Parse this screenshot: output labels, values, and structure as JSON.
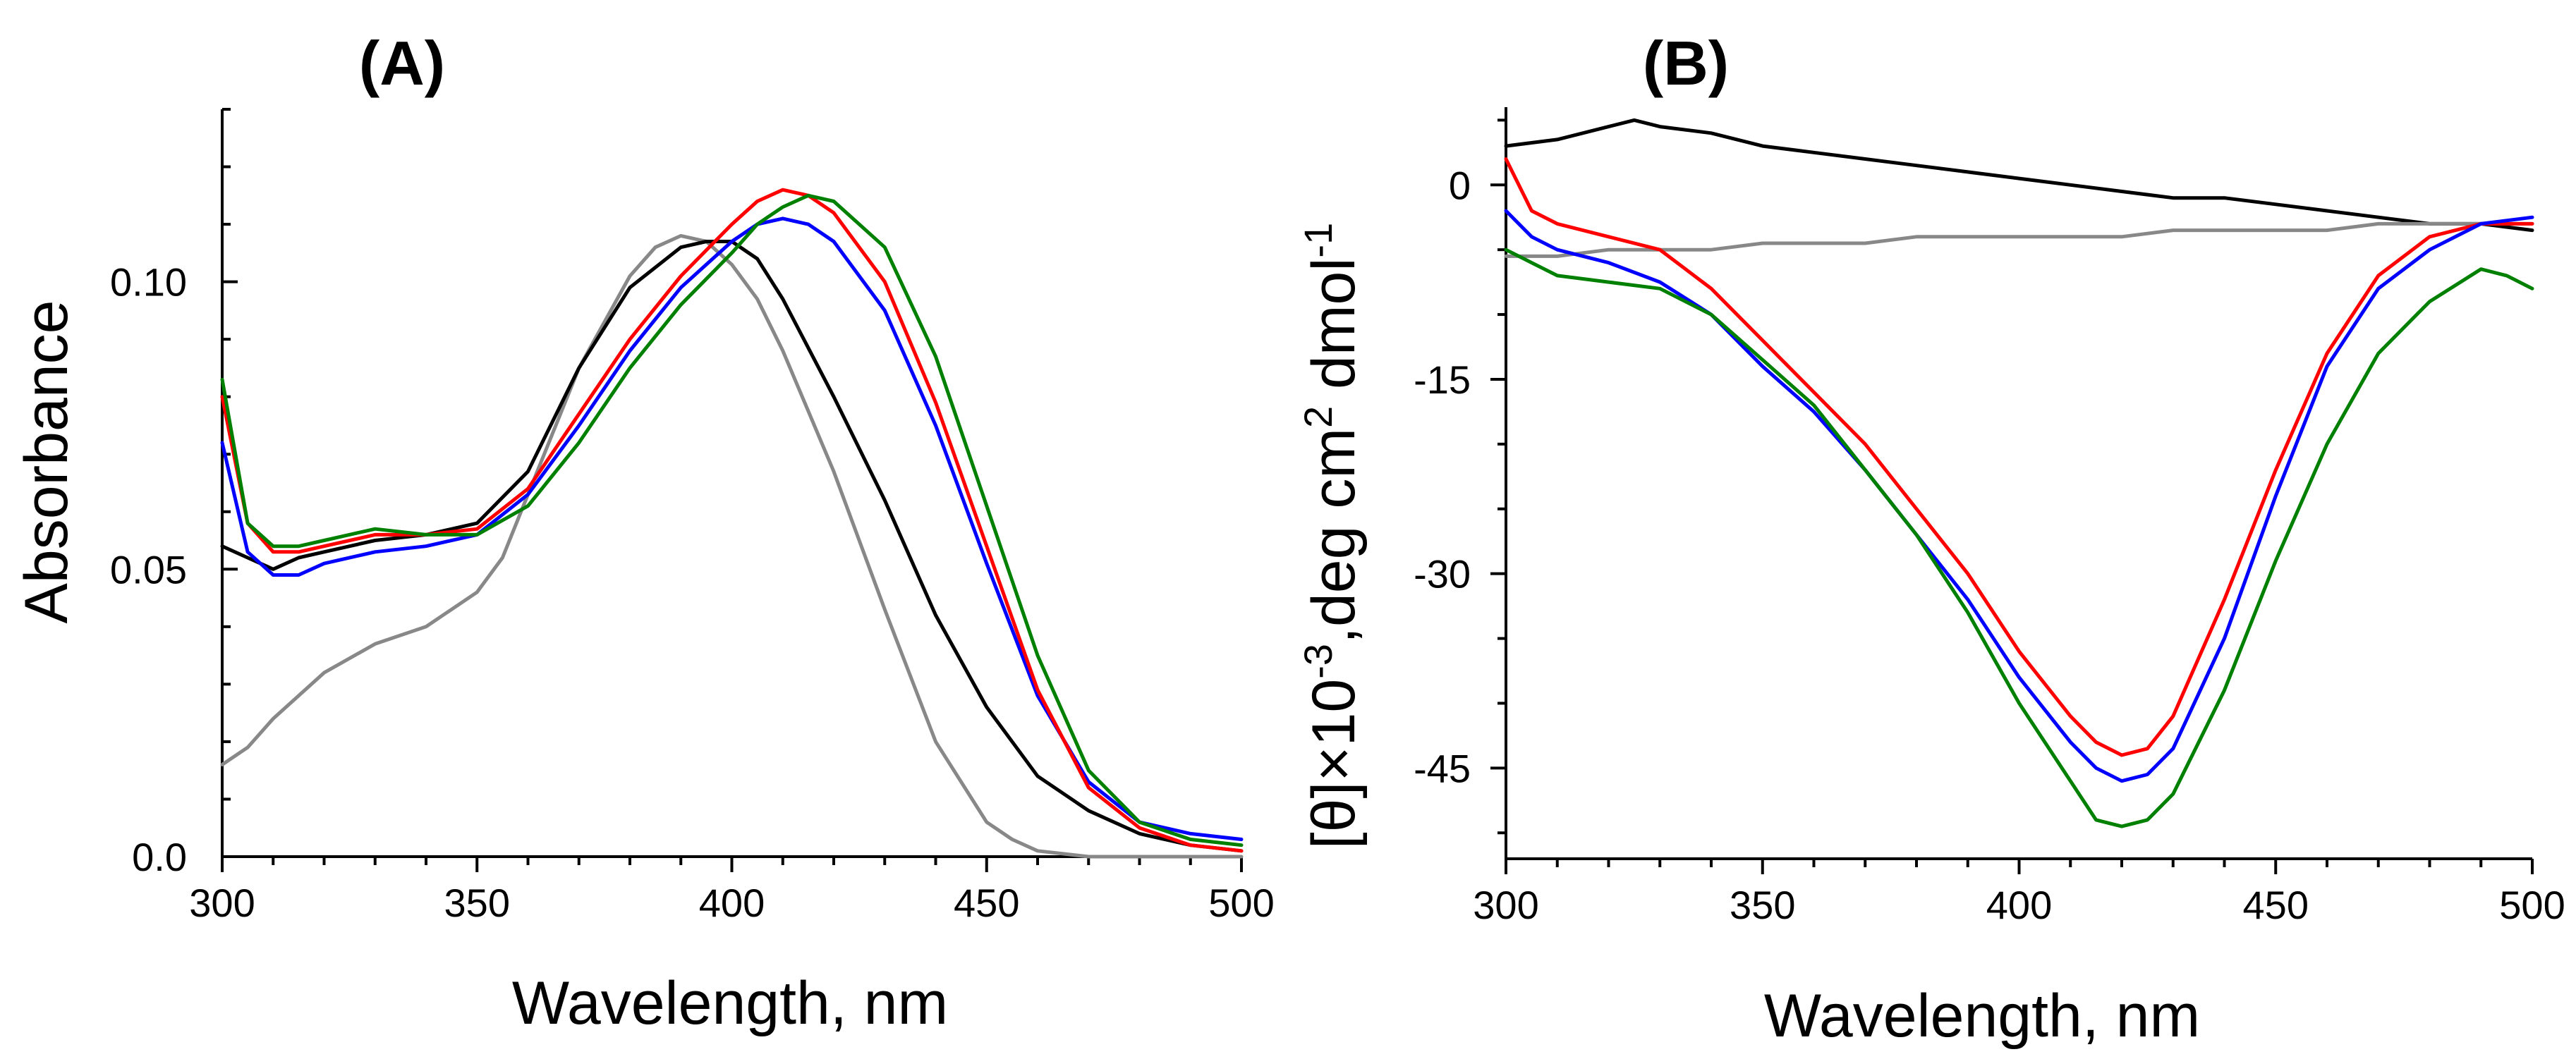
{
  "chart_data": [
    {
      "type": "line",
      "panel_label": "(A)",
      "xlabel": "Wavelength, nm",
      "ylabel": "Absorbance",
      "xlim": [
        300,
        500
      ],
      "ylim": [
        0,
        0.13
      ],
      "xticks": [
        "300",
        "350",
        "400",
        "450",
        "500"
      ],
      "yticks": [
        "0.0",
        "0.05",
        "0.10"
      ],
      "ytick_values": [
        0,
        0.05,
        0.1
      ],
      "series": [
        {
          "name": "gray",
          "color": "#888888",
          "x": [
            300,
            305,
            310,
            320,
            330,
            340,
            350,
            355,
            360,
            370,
            380,
            385,
            390,
            395,
            400,
            405,
            410,
            420,
            430,
            440,
            450,
            455,
            460,
            465,
            470,
            475,
            480,
            490,
            500
          ],
          "y": [
            0.016,
            0.019,
            0.024,
            0.032,
            0.037,
            0.04,
            0.046,
            0.052,
            0.063,
            0.085,
            0.101,
            0.106,
            0.108,
            0.107,
            0.103,
            0.097,
            0.088,
            0.067,
            0.043,
            0.02,
            0.006,
            0.003,
            0.001,
            0.0005,
            0.0,
            0.0,
            0.0,
            0.0,
            0.0
          ]
        },
        {
          "name": "black",
          "color": "#000000",
          "x": [
            300,
            305,
            310,
            315,
            320,
            330,
            340,
            350,
            360,
            370,
            380,
            390,
            395,
            400,
            405,
            410,
            420,
            430,
            440,
            450,
            460,
            470,
            480,
            490,
            500
          ],
          "y": [
            0.054,
            0.052,
            0.05,
            0.052,
            0.053,
            0.055,
            0.056,
            0.058,
            0.067,
            0.085,
            0.099,
            0.106,
            0.107,
            0.107,
            0.104,
            0.097,
            0.08,
            0.062,
            0.042,
            0.026,
            0.014,
            0.008,
            0.004,
            0.002,
            0.001
          ]
        },
        {
          "name": "blue",
          "color": "#0000ff",
          "x": [
            300,
            305,
            310,
            315,
            320,
            330,
            340,
            350,
            360,
            370,
            380,
            390,
            400,
            405,
            410,
            415,
            420,
            430,
            440,
            450,
            460,
            470,
            480,
            490,
            500
          ],
          "y": [
            0.072,
            0.053,
            0.049,
            0.049,
            0.051,
            0.053,
            0.054,
            0.056,
            0.063,
            0.075,
            0.088,
            0.099,
            0.107,
            0.11,
            0.111,
            0.11,
            0.107,
            0.095,
            0.075,
            0.051,
            0.028,
            0.013,
            0.006,
            0.004,
            0.003
          ]
        },
        {
          "name": "red",
          "color": "#ff0000",
          "x": [
            300,
            305,
            310,
            315,
            320,
            330,
            340,
            350,
            360,
            370,
            380,
            390,
            400,
            405,
            410,
            415,
            420,
            430,
            440,
            450,
            460,
            470,
            480,
            490,
            500
          ],
          "y": [
            0.08,
            0.058,
            0.053,
            0.053,
            0.054,
            0.056,
            0.056,
            0.057,
            0.064,
            0.077,
            0.09,
            0.101,
            0.11,
            0.114,
            0.116,
            0.115,
            0.112,
            0.1,
            0.079,
            0.054,
            0.029,
            0.012,
            0.005,
            0.002,
            0.001
          ]
        },
        {
          "name": "green",
          "color": "#008000",
          "x": [
            300,
            305,
            310,
            315,
            320,
            330,
            340,
            350,
            360,
            370,
            380,
            390,
            400,
            405,
            410,
            415,
            420,
            430,
            440,
            450,
            460,
            470,
            480,
            490,
            500
          ],
          "y": [
            0.083,
            0.058,
            0.054,
            0.054,
            0.055,
            0.057,
            0.056,
            0.056,
            0.061,
            0.072,
            0.085,
            0.096,
            0.105,
            0.11,
            0.113,
            0.115,
            0.114,
            0.106,
            0.087,
            0.061,
            0.035,
            0.015,
            0.006,
            0.003,
            0.002
          ]
        }
      ]
    },
    {
      "type": "line",
      "panel_label": "(B)",
      "xlabel": "Wavelength, nm",
      "ylabel_base": "[θ]×10",
      "ylabel_exp1": "-3",
      "ylabel_mid": ",deg cm",
      "ylabel_exp2": "2",
      "ylabel_unit": " dmol",
      "ylabel_exp3": "-1",
      "xlim": [
        300,
        500
      ],
      "ylim": [
        -52,
        6
      ],
      "xticks": [
        "300",
        "350",
        "400",
        "450",
        "500"
      ],
      "yticks": [
        "0",
        "-15",
        "-30",
        "-45"
      ],
      "ytick_values": [
        0,
        -15,
        -30,
        -45
      ],
      "minor_ytick_values": [
        5,
        -5,
        -10,
        -20,
        -25,
        -35,
        -40,
        -50
      ],
      "series": [
        {
          "name": "black",
          "color": "#000000",
          "x": [
            300,
            310,
            320,
            325,
            330,
            340,
            350,
            360,
            370,
            380,
            390,
            400,
            410,
            420,
            430,
            440,
            450,
            460,
            470,
            480,
            490,
            500
          ],
          "y": [
            3,
            3.5,
            4.5,
            5,
            4.5,
            4,
            3,
            2.5,
            2,
            1.5,
            1,
            0.5,
            0,
            -0.5,
            -1,
            -1,
            -1.5,
            -2,
            -2.5,
            -3,
            -3,
            -3.5
          ]
        },
        {
          "name": "gray",
          "color": "#888888",
          "x": [
            300,
            310,
            320,
            330,
            340,
            350,
            360,
            370,
            380,
            390,
            400,
            410,
            420,
            430,
            440,
            450,
            460,
            470,
            480,
            490,
            500
          ],
          "y": [
            -5.5,
            -5.5,
            -5,
            -5,
            -5,
            -4.5,
            -4.5,
            -4.5,
            -4,
            -4,
            -4,
            -4,
            -4,
            -3.5,
            -3.5,
            -3.5,
            -3.5,
            -3,
            -3,
            -3,
            -3
          ]
        },
        {
          "name": "red",
          "color": "#ff0000",
          "x": [
            300,
            305,
            310,
            320,
            330,
            340,
            350,
            360,
            370,
            380,
            390,
            400,
            410,
            415,
            420,
            425,
            430,
            440,
            450,
            460,
            470,
            480,
            490,
            500
          ],
          "y": [
            2,
            -2,
            -3,
            -4,
            -5,
            -8,
            -12,
            -16,
            -20,
            -25,
            -30,
            -36,
            -41,
            -43,
            -44,
            -43.5,
            -41,
            -32,
            -22,
            -13,
            -7,
            -4,
            -3,
            -3
          ]
        },
        {
          "name": "blue",
          "color": "#0000ff",
          "x": [
            300,
            305,
            310,
            320,
            330,
            340,
            350,
            360,
            370,
            380,
            390,
            400,
            410,
            415,
            420,
            425,
            430,
            440,
            450,
            460,
            470,
            480,
            490,
            500
          ],
          "y": [
            -2,
            -4,
            -5,
            -6,
            -7.5,
            -10,
            -14,
            -17.5,
            -22,
            -27,
            -32,
            -38,
            -43,
            -45,
            -46,
            -45.5,
            -43.5,
            -35,
            -24,
            -14,
            -8,
            -5,
            -3,
            -2.5
          ]
        },
        {
          "name": "green",
          "color": "#008000",
          "x": [
            300,
            305,
            310,
            320,
            330,
            340,
            350,
            360,
            370,
            380,
            390,
            400,
            410,
            415,
            420,
            425,
            430,
            440,
            450,
            460,
            470,
            480,
            490,
            495,
            500
          ],
          "y": [
            -5,
            -6,
            -7,
            -7.5,
            -8,
            -10,
            -13.5,
            -17,
            -22,
            -27,
            -33,
            -40,
            -46,
            -49,
            -49.5,
            -49,
            -47,
            -39,
            -29,
            -20,
            -13,
            -9,
            -6.5,
            -7,
            -8
          ]
        }
      ]
    }
  ]
}
